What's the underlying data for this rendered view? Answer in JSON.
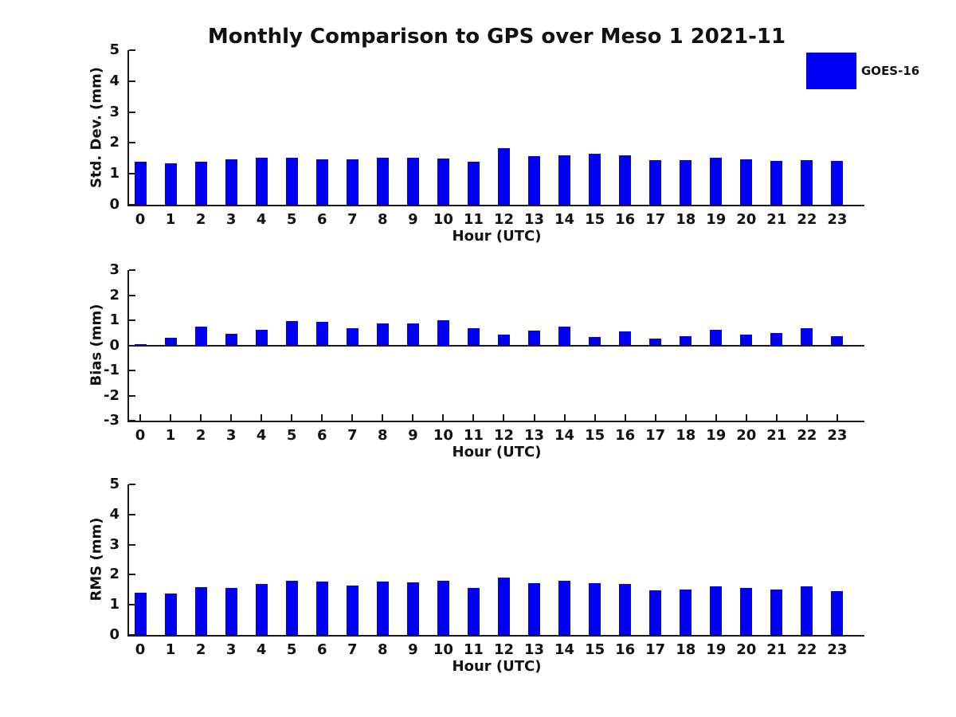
{
  "figure": {
    "title": "Monthly Comparison to GPS over Meso 1 2021-11",
    "background_color": "#ffffff",
    "axis_color": "#1a1a1a",
    "text_color": "#111111"
  },
  "legend": {
    "label": "GOES-16",
    "swatch_color": "#0000f5",
    "position": "top-right"
  },
  "chart_data": [
    {
      "type": "bar",
      "panel": "top",
      "ylabel": "Std. Dev. (mm)",
      "xlabel": "Hour (UTC)",
      "ylim": [
        0,
        5
      ],
      "yticks": [
        0,
        1,
        2,
        3,
        4,
        5
      ],
      "grid": false,
      "categories": [
        "0",
        "1",
        "2",
        "3",
        "4",
        "5",
        "6",
        "7",
        "8",
        "9",
        "10",
        "11",
        "12",
        "13",
        "14",
        "15",
        "16",
        "17",
        "18",
        "19",
        "20",
        "21",
        "22",
        "23"
      ],
      "series": [
        {
          "name": "GOES-16",
          "color": "#0000f5",
          "values": [
            1.38,
            1.34,
            1.38,
            1.48,
            1.53,
            1.51,
            1.48,
            1.48,
            1.51,
            1.51,
            1.49,
            1.38,
            1.84,
            1.58,
            1.61,
            1.66,
            1.6,
            1.44,
            1.45,
            1.52,
            1.48,
            1.41,
            1.45,
            1.41
          ]
        }
      ]
    },
    {
      "type": "bar",
      "panel": "middle",
      "ylabel": "Bias (mm)",
      "xlabel": "Hour (UTC)",
      "ylim": [
        -3,
        3
      ],
      "yticks": [
        -3,
        -2,
        -1,
        0,
        1,
        2,
        3
      ],
      "zero_line": true,
      "grid": false,
      "categories": [
        "0",
        "1",
        "2",
        "3",
        "4",
        "5",
        "6",
        "7",
        "8",
        "9",
        "10",
        "11",
        "12",
        "13",
        "14",
        "15",
        "16",
        "17",
        "18",
        "19",
        "20",
        "21",
        "22",
        "23"
      ],
      "series": [
        {
          "name": "GOES-16",
          "color": "#0000f5",
          "values": [
            0.06,
            0.3,
            0.75,
            0.46,
            0.61,
            0.97,
            0.93,
            0.67,
            0.87,
            0.88,
            1.0,
            0.69,
            0.43,
            0.6,
            0.75,
            0.33,
            0.55,
            0.28,
            0.37,
            0.61,
            0.44,
            0.5,
            0.69,
            0.38
          ]
        }
      ]
    },
    {
      "type": "bar",
      "panel": "bottom",
      "ylabel": "RMS (mm)",
      "xlabel": "Hour (UTC)",
      "ylim": [
        0,
        5
      ],
      "yticks": [
        0,
        1,
        2,
        3,
        4,
        5
      ],
      "grid": false,
      "categories": [
        "0",
        "1",
        "2",
        "3",
        "4",
        "5",
        "6",
        "7",
        "8",
        "9",
        "10",
        "11",
        "12",
        "13",
        "14",
        "15",
        "16",
        "17",
        "18",
        "19",
        "20",
        "21",
        "22",
        "23"
      ],
      "series": [
        {
          "name": "GOES-16",
          "color": "#0000f5",
          "values": [
            1.41,
            1.37,
            1.59,
            1.55,
            1.68,
            1.79,
            1.76,
            1.64,
            1.76,
            1.74,
            1.79,
            1.55,
            1.9,
            1.71,
            1.79,
            1.71,
            1.7,
            1.48,
            1.51,
            1.61,
            1.55,
            1.52,
            1.62,
            1.46
          ]
        }
      ]
    }
  ]
}
